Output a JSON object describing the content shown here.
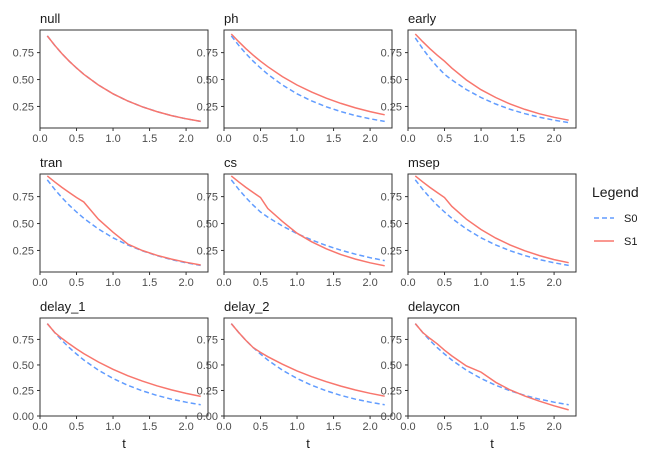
{
  "chart_data": {
    "type": "line",
    "facets": [
      {
        "title": "null",
        "series": [
          {
            "name": "S0",
            "x": [
              0.1,
              0.2,
              0.3,
              0.4,
              0.5,
              0.6,
              0.8,
              1.0,
              1.2,
              1.4,
              1.6,
              1.8,
              2.0,
              2.2
            ],
            "y": [
              0.905,
              0.819,
              0.741,
              0.67,
              0.607,
              0.549,
              0.449,
              0.368,
              0.301,
              0.247,
              0.202,
              0.165,
              0.135,
              0.111
            ]
          },
          {
            "name": "S1",
            "x": [
              0.1,
              0.2,
              0.3,
              0.4,
              0.5,
              0.6,
              0.8,
              1.0,
              1.2,
              1.4,
              1.6,
              1.8,
              2.0,
              2.2
            ],
            "y": [
              0.905,
              0.819,
              0.741,
              0.67,
              0.607,
              0.549,
              0.449,
              0.368,
              0.301,
              0.247,
              0.202,
              0.165,
              0.135,
              0.111
            ]
          }
        ]
      },
      {
        "title": "ph",
        "series": [
          {
            "name": "S0",
            "x": [
              0.1,
              0.2,
              0.3,
              0.4,
              0.5,
              0.6,
              0.8,
              1.0,
              1.2,
              1.4,
              1.6,
              1.8,
              2.0,
              2.2
            ],
            "y": [
              0.905,
              0.819,
              0.741,
              0.67,
              0.607,
              0.549,
              0.449,
              0.368,
              0.301,
              0.247,
              0.202,
              0.165,
              0.135,
              0.111
            ]
          },
          {
            "name": "S1",
            "x": [
              0.1,
              0.2,
              0.3,
              0.4,
              0.5,
              0.6,
              0.8,
              1.0,
              1.2,
              1.4,
              1.6,
              1.8,
              2.0,
              2.2
            ],
            "y": [
              0.923,
              0.852,
              0.786,
              0.726,
              0.67,
              0.619,
              0.527,
              0.449,
              0.383,
              0.327,
              0.278,
              0.237,
              0.202,
              0.173
            ]
          }
        ]
      },
      {
        "title": "early",
        "series": [
          {
            "name": "S0",
            "x": [
              0.1,
              0.2,
              0.3,
              0.4,
              0.5,
              0.6,
              0.8,
              1.0,
              1.2,
              1.4,
              1.6,
              1.8,
              2.0,
              2.2
            ],
            "y": [
              0.887,
              0.787,
              0.698,
              0.619,
              0.549,
              0.497,
              0.407,
              0.333,
              0.273,
              0.223,
              0.183,
              0.15,
              0.122,
              0.1
            ]
          },
          {
            "name": "S1",
            "x": [
              0.1,
              0.2,
              0.3,
              0.4,
              0.5,
              0.6,
              0.8,
              1.0,
              1.2,
              1.4,
              1.6,
              1.8,
              2.0,
              2.2
            ],
            "y": [
              0.923,
              0.852,
              0.786,
              0.726,
              0.67,
              0.606,
              0.496,
              0.406,
              0.333,
              0.272,
              0.223,
              0.182,
              0.149,
              0.122
            ]
          }
        ]
      },
      {
        "title": "tran",
        "series": [
          {
            "name": "S0",
            "x": [
              0.1,
              0.2,
              0.3,
              0.4,
              0.5,
              0.6,
              0.8,
              1.0,
              1.2,
              1.4,
              1.6,
              1.8,
              2.0,
              2.2
            ],
            "y": [
              0.905,
              0.819,
              0.741,
              0.67,
              0.607,
              0.549,
              0.449,
              0.368,
              0.301,
              0.247,
              0.202,
              0.165,
              0.135,
              0.111
            ]
          },
          {
            "name": "S1",
            "x": [
              0.1,
              0.2,
              0.3,
              0.4,
              0.5,
              0.6,
              0.8,
              1.0,
              1.2,
              1.4,
              1.6,
              1.8,
              2.0,
              2.2
            ],
            "y": [
              0.942,
              0.888,
              0.836,
              0.788,
              0.742,
              0.7,
              0.54,
              0.42,
              0.31,
              0.25,
              0.205,
              0.17,
              0.14,
              0.115
            ]
          }
        ]
      },
      {
        "title": "cs",
        "series": [
          {
            "name": "S0",
            "x": [
              0.1,
              0.2,
              0.3,
              0.4,
              0.5,
              0.6,
              0.8,
              1.0,
              1.2,
              1.4,
              1.6,
              1.8,
              2.0,
              2.2
            ],
            "y": [
              0.905,
              0.819,
              0.741,
              0.67,
              0.607,
              0.56,
              0.477,
              0.407,
              0.347,
              0.296,
              0.252,
              0.215,
              0.183,
              0.156
            ]
          },
          {
            "name": "S1",
            "x": [
              0.1,
              0.2,
              0.3,
              0.4,
              0.5,
              0.6,
              0.8,
              1.0,
              1.2,
              1.4,
              1.6,
              1.8,
              2.0,
              2.2
            ],
            "y": [
              0.942,
              0.888,
              0.836,
              0.788,
              0.742,
              0.64,
              0.52,
              0.41,
              0.33,
              0.265,
              0.212,
              0.17,
              0.135,
              0.108
            ]
          }
        ]
      },
      {
        "title": "msep",
        "series": [
          {
            "name": "S0",
            "x": [
              0.1,
              0.2,
              0.3,
              0.4,
              0.5,
              0.6,
              0.8,
              1.0,
              1.2,
              1.4,
              1.6,
              1.8,
              2.0,
              2.2
            ],
            "y": [
              0.905,
              0.819,
              0.741,
              0.67,
              0.607,
              0.549,
              0.449,
              0.368,
              0.301,
              0.247,
              0.202,
              0.165,
              0.135,
              0.111
            ]
          },
          {
            "name": "S1",
            "x": [
              0.1,
              0.2,
              0.3,
              0.4,
              0.5,
              0.6,
              0.8,
              1.0,
              1.2,
              1.4,
              1.6,
              1.8,
              2.0,
              2.2
            ],
            "y": [
              0.942,
              0.888,
              0.836,
              0.788,
              0.742,
              0.66,
              0.54,
              0.445,
              0.365,
              0.3,
              0.247,
              0.202,
              0.165,
              0.136
            ]
          }
        ]
      },
      {
        "title": "delay_1",
        "series": [
          {
            "name": "S0",
            "x": [
              0.1,
              0.2,
              0.3,
              0.4,
              0.5,
              0.6,
              0.8,
              1.0,
              1.2,
              1.4,
              1.6,
              1.8,
              2.0,
              2.2
            ],
            "y": [
              0.905,
              0.819,
              0.741,
              0.67,
              0.607,
              0.549,
              0.449,
              0.368,
              0.301,
              0.247,
              0.202,
              0.165,
              0.135,
              0.111
            ]
          },
          {
            "name": "S1",
            "x": [
              0.1,
              0.2,
              0.3,
              0.4,
              0.5,
              0.6,
              0.8,
              1.0,
              1.2,
              1.4,
              1.6,
              1.8,
              2.0,
              2.2
            ],
            "y": [
              0.905,
              0.819,
              0.76,
              0.707,
              0.657,
              0.611,
              0.529,
              0.457,
              0.395,
              0.342,
              0.296,
              0.256,
              0.221,
              0.192
            ]
          }
        ]
      },
      {
        "title": "delay_2",
        "series": [
          {
            "name": "S0",
            "x": [
              0.1,
              0.2,
              0.3,
              0.4,
              0.5,
              0.6,
              0.8,
              1.0,
              1.2,
              1.4,
              1.6,
              1.8,
              2.0,
              2.2
            ],
            "y": [
              0.905,
              0.819,
              0.741,
              0.67,
              0.607,
              0.549,
              0.449,
              0.368,
              0.301,
              0.247,
              0.202,
              0.165,
              0.135,
              0.111
            ]
          },
          {
            "name": "S1",
            "x": [
              0.1,
              0.2,
              0.3,
              0.4,
              0.5,
              0.6,
              0.8,
              1.0,
              1.2,
              1.4,
              1.6,
              1.8,
              2.0,
              2.2
            ],
            "y": [
              0.905,
              0.819,
              0.741,
              0.67,
              0.623,
              0.581,
              0.507,
              0.442,
              0.385,
              0.336,
              0.293,
              0.255,
              0.222,
              0.194
            ]
          }
        ]
      },
      {
        "title": "delaycon",
        "series": [
          {
            "name": "S0",
            "x": [
              0.1,
              0.2,
              0.3,
              0.4,
              0.5,
              0.6,
              0.8,
              1.0,
              1.2,
              1.4,
              1.6,
              1.8,
              2.0,
              2.2
            ],
            "y": [
              0.905,
              0.819,
              0.741,
              0.67,
              0.607,
              0.549,
              0.449,
              0.368,
              0.301,
              0.247,
              0.202,
              0.165,
              0.135,
              0.111
            ]
          },
          {
            "name": "S1",
            "x": [
              0.1,
              0.2,
              0.3,
              0.4,
              0.5,
              0.6,
              0.8,
              1.0,
              1.2,
              1.4,
              1.6,
              1.8,
              2.0,
              2.2
            ],
            "y": [
              0.905,
              0.819,
              0.76,
              0.707,
              0.645,
              0.589,
              0.49,
              0.43,
              0.33,
              0.255,
              0.195,
              0.145,
              0.1,
              0.06
            ]
          }
        ]
      }
    ],
    "xlabel": "t",
    "ylabel": "",
    "xlim": [
      0,
      2.3
    ],
    "ylim": [
      0.05,
      0.96
    ],
    "ylim_bottom_row": [
      0.0,
      0.96
    ],
    "x_ticks": [
      0.0,
      0.5,
      1.0,
      1.5,
      2.0
    ],
    "x_tick_labels": [
      "0.0",
      "0.5",
      "1.0",
      "1.5",
      "2.0"
    ],
    "y_ticks": [
      0.25,
      0.5,
      0.75
    ],
    "y_tick_labels": [
      "0.25",
      "0.50",
      "0.75"
    ],
    "y_ticks_bottom_row": [
      0.0,
      0.25,
      0.5,
      0.75
    ],
    "y_tick_labels_bottom_row": [
      "0.00",
      "0.25",
      "0.50",
      "0.75"
    ],
    "legend": {
      "title": "Legend",
      "position": "right",
      "entries": [
        {
          "label": "S0",
          "color": "#619CFF",
          "dash": true
        },
        {
          "label": "S1",
          "color": "#F8766D",
          "dash": false
        }
      ]
    },
    "grid": false
  }
}
